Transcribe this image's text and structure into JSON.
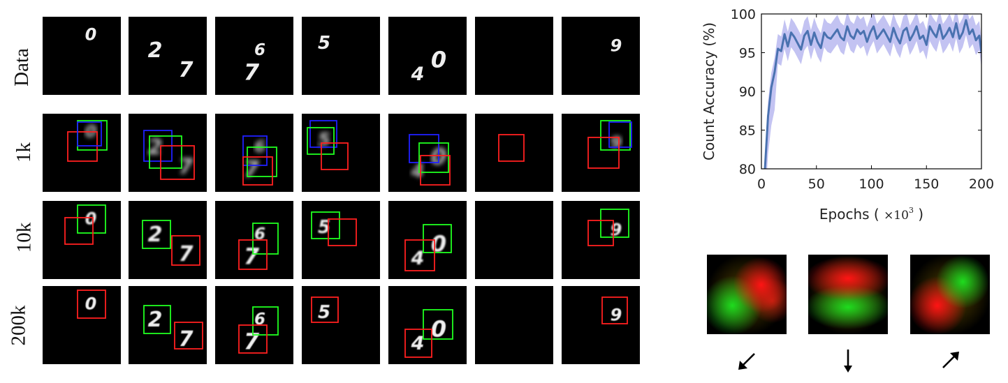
{
  "rows": [
    {
      "label": "Data",
      "kind": "data"
    },
    {
      "label": "1k",
      "kind": "iter"
    },
    {
      "label": "10k",
      "kind": "iter"
    },
    {
      "label": "200k",
      "kind": "iter"
    }
  ],
  "columns": [
    {
      "digits": [
        "0"
      ]
    },
    {
      "digits": [
        "2",
        "7"
      ]
    },
    {
      "digits": [
        "6",
        "7"
      ]
    },
    {
      "digits": [
        "5"
      ]
    },
    {
      "digits": [
        "0",
        "4"
      ]
    },
    {
      "digits": []
    },
    {
      "digits": [
        "9"
      ]
    }
  ],
  "box_colors": {
    "red": "#ff2020",
    "green": "#20ff20",
    "blue": "#2020ff"
  },
  "chart_data": {
    "type": "line",
    "xlabel_prefix": "Epochs ( ",
    "xlabel_math": "×10",
    "xlabel_sup": "3",
    "xlabel_suffix": " )",
    "ylabel": "Count Accuracy (%)",
    "xlim": [
      0,
      200
    ],
    "ylim": [
      80,
      100
    ],
    "xticks": [
      "0",
      "50",
      "100",
      "150",
      "200"
    ],
    "yticks": [
      "80",
      "85",
      "90",
      "95",
      "100"
    ],
    "line_color": "#4a72b0",
    "band_color": "#b8b8f0",
    "series": [
      {
        "x": [
          3,
          6,
          9,
          12,
          15,
          18,
          21,
          24,
          27,
          30,
          33,
          36,
          39,
          42,
          45,
          48,
          51,
          54,
          57,
          60,
          63,
          66,
          69,
          72,
          75,
          78,
          81,
          84,
          87,
          90,
          93,
          96,
          99,
          102,
          105,
          108,
          111,
          114,
          117,
          120,
          123,
          126,
          129,
          132,
          135,
          138,
          141,
          144,
          147,
          150,
          153,
          156,
          159,
          162,
          165,
          168,
          171,
          174,
          177,
          180,
          183,
          186,
          189,
          192,
          195,
          198,
          200
        ],
        "y": [
          79.5,
          86.8,
          90.5,
          92.5,
          95.5,
          95.2,
          97.4,
          95.8,
          97.6,
          97.0,
          96.2,
          95.4,
          97.2,
          97.8,
          96.0,
          97.6,
          96.4,
          95.6,
          97.6,
          97.0,
          96.8,
          97.4,
          98.0,
          97.0,
          96.6,
          98.4,
          97.2,
          96.8,
          98.0,
          97.4,
          97.8,
          96.4,
          97.6,
          98.4,
          96.8,
          97.4,
          98.0,
          97.2,
          96.4,
          98.2,
          97.0,
          96.2,
          97.8,
          98.2,
          96.6,
          97.4,
          98.4,
          96.8,
          97.2,
          96.0,
          98.4,
          97.6,
          97.0,
          98.6,
          96.8,
          97.4,
          98.2,
          97.0,
          98.8,
          96.8,
          97.6,
          99.2,
          97.4,
          98.0,
          96.6,
          97.2,
          95.0
        ],
        "band": 1.9
      }
    ]
  },
  "heatmaps": [
    {
      "direction": "down-left",
      "arrow": "↙"
    },
    {
      "direction": "down",
      "arrow": "↓"
    },
    {
      "direction": "up-right",
      "arrow": "↗"
    }
  ]
}
